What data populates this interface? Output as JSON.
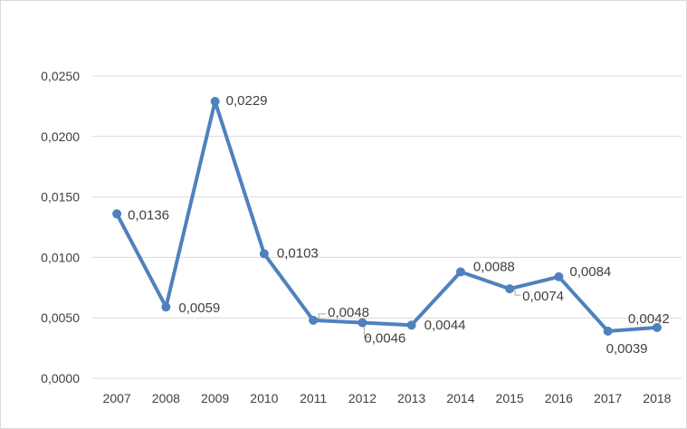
{
  "chart_data": {
    "type": "line",
    "title": "",
    "xlabel": "",
    "ylabel": "",
    "categories": [
      "2007",
      "2008",
      "2009",
      "2010",
      "2011",
      "2012",
      "2013",
      "2014",
      "2015",
      "2016",
      "2017",
      "2018"
    ],
    "series": [
      {
        "values": [
          0.0136,
          0.0059,
          0.0229,
          0.0103,
          0.0048,
          0.0046,
          0.0044,
          0.0088,
          0.0074,
          0.0084,
          0.0039,
          0.0042
        ],
        "labels": [
          "0,0136",
          "0,0059",
          "0,0229",
          "0,0103",
          "0,0048",
          "0,0046",
          "0,0044",
          "0,0088",
          "0,0074",
          "0,0084",
          "0,0039",
          "0,0042"
        ]
      }
    ],
    "ylim": [
      0,
      0.025
    ],
    "yticks": [
      {
        "value": 0,
        "label": "0,0000"
      },
      {
        "value": 0.005,
        "label": "0,0050"
      },
      {
        "value": 0.01,
        "label": "0,0100"
      },
      {
        "value": 0.015,
        "label": "0,0150"
      },
      {
        "value": 0.02,
        "label": "0,0200"
      },
      {
        "value": 0.025,
        "label": "0,0250"
      }
    ],
    "grid": true,
    "legend": "none",
    "colors": {
      "line": "#4f81bd",
      "grid": "#d9d9d9",
      "text": "#404040"
    }
  }
}
